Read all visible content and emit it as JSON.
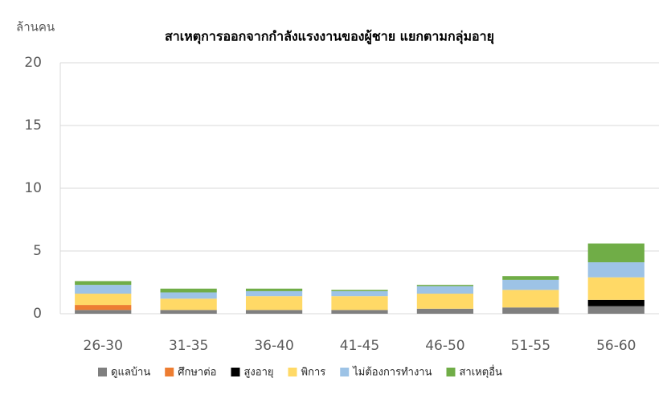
{
  "chart_data": {
    "type": "bar",
    "stacked": true,
    "title": "สาเหตุการออกจากกำลังแรงงานของผู้ชาย แยกตามกลุ่มอายุ",
    "y_label": "ล้านคน",
    "categories": [
      "26-30",
      "31-35",
      "36-40",
      "41-45",
      "46-50",
      "51-55",
      "56-60"
    ],
    "series": [
      {
        "name": "ดูแลบ้าน",
        "color": "#7f7f7f",
        "values": [
          0.3,
          0.3,
          0.3,
          0.3,
          0.4,
          0.5,
          0.6
        ]
      },
      {
        "name": "ศึกษาต่อ",
        "color": "#ed7d31",
        "values": [
          0.4,
          0,
          0,
          0,
          0,
          0,
          0
        ]
      },
      {
        "name": "สูงอายุ",
        "color": "#000000",
        "values": [
          0,
          0,
          0,
          0,
          0,
          0,
          0.5
        ]
      },
      {
        "name": "พิการ",
        "color": "#ffd966",
        "values": [
          0.9,
          0.9,
          1.1,
          1.1,
          1.2,
          1.4,
          1.8
        ]
      },
      {
        "name": "ไม่ต้องการทำงาน",
        "color": "#9dc3e6",
        "values": [
          0.7,
          0.5,
          0.4,
          0.4,
          0.6,
          0.8,
          1.2
        ]
      },
      {
        "name": "สาเหตุอื่น",
        "color": "#70ad47",
        "values": [
          0.3,
          0.3,
          0.2,
          0.1,
          0.1,
          0.3,
          1.5
        ]
      }
    ],
    "ylim": [
      0,
      20
    ],
    "yticks": [
      0,
      5,
      10,
      15,
      20
    ],
    "grid": true,
    "legend": "bottom"
  }
}
